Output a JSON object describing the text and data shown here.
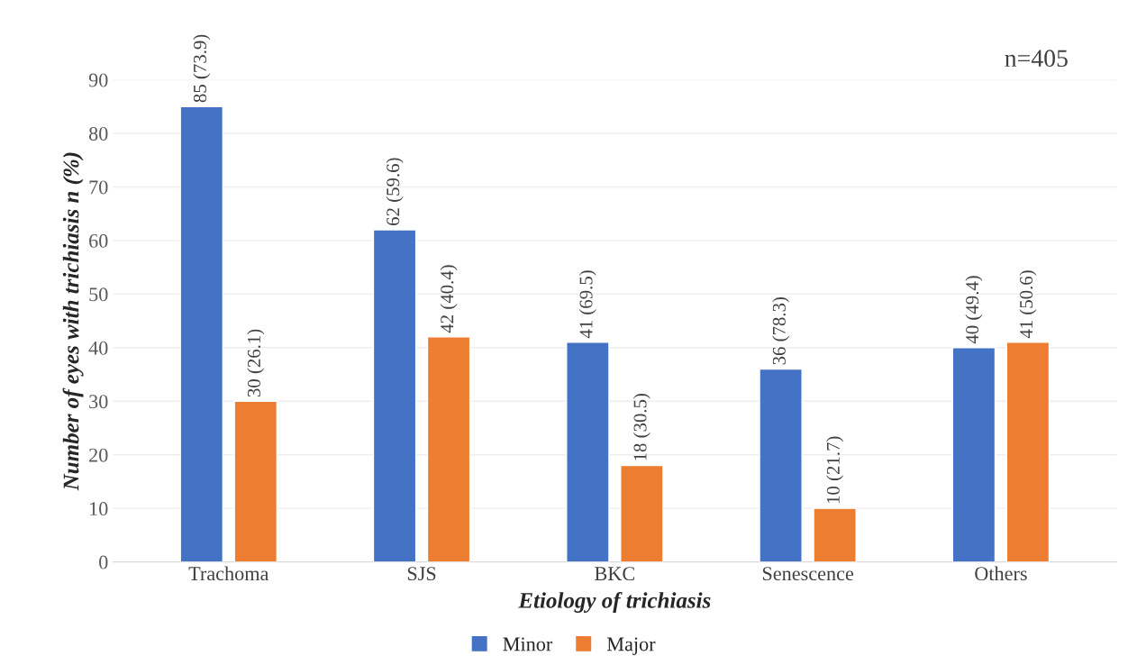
{
  "chart_data": {
    "type": "bar",
    "xlabel": "Etiology of trichiasis",
    "ylabel": "Number of eyes with trichiasis n (%)",
    "categories": [
      "Trachoma",
      "SJS",
      "BKC",
      "Senescence",
      "Others"
    ],
    "series": [
      {
        "name": "Minor",
        "color": "#4472c4",
        "values": [
          85,
          62,
          41,
          36,
          40
        ],
        "value_labels": [
          "85 (73.9)",
          "62 (59.6)",
          "41 (69.5)",
          "36 (78.3)",
          "40 (49.4)"
        ]
      },
      {
        "name": "Major",
        "color": "#ed7d31",
        "values": [
          30,
          42,
          18,
          10,
          41
        ],
        "value_labels": [
          "30 (26.1)",
          "42 (40.4)",
          "18 (30.5)",
          "10 (21.7)",
          "41 (50.6)"
        ]
      }
    ],
    "ylim": [
      0,
      90
    ],
    "yticks": [
      0,
      10,
      20,
      30,
      40,
      50,
      60,
      70,
      80,
      90
    ],
    "grid": "y",
    "legend": "bottom",
    "annotations": [
      "n=405"
    ]
  }
}
